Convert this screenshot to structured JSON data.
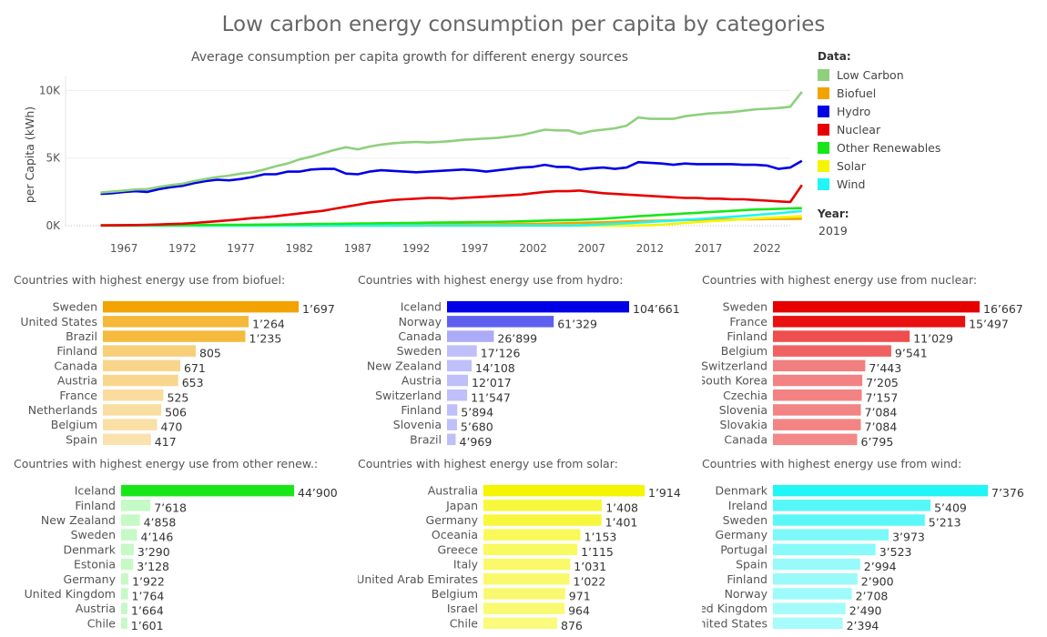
{
  "title": "Low carbon energy consumption per capita by categories",
  "subtitle": "Average consumption per capita growth for different energy sources",
  "legend": {
    "title": "Data:",
    "items": [
      {
        "label": "Low Carbon",
        "color": "#8ed07c"
      },
      {
        "label": "Biofuel",
        "color": "#f2a300"
      },
      {
        "label": "Hydro",
        "color": "#0000e6"
      },
      {
        "label": "Nuclear",
        "color": "#e60000"
      },
      {
        "label": "Other Renewables",
        "color": "#19e619"
      },
      {
        "label": "Solar",
        "color": "#f5f500"
      },
      {
        "label": "Wind",
        "color": "#21f5f5"
      }
    ]
  },
  "year_filter": {
    "label": "Year:",
    "value": "2019"
  },
  "chart_data": [
    {
      "type": "line",
      "title": "Average consumption per capita growth for different energy sources",
      "ylabel": "per Capita (kWh)",
      "ylim": [
        0,
        10500
      ],
      "xlim": [
        1962,
        2024
      ],
      "y_ticks": [
        {
          "v": 0,
          "label": "0K"
        },
        {
          "v": 5000,
          "label": "5K"
        },
        {
          "v": 10000,
          "label": "10K"
        }
      ],
      "x_ticks": [
        1967,
        1972,
        1977,
        1982,
        1987,
        1992,
        1997,
        2002,
        2007,
        2012,
        2017,
        2022
      ],
      "x_start": 1965,
      "grid": true,
      "series": [
        {
          "name": "Low Carbon",
          "color": "#8ed07c",
          "values": [
            2450,
            2520,
            2600,
            2680,
            2700,
            2870,
            3000,
            3100,
            3300,
            3450,
            3600,
            3700,
            3850,
            3950,
            4150,
            4400,
            4600,
            4900,
            5100,
            5350,
            5600,
            5800,
            5650,
            5850,
            6000,
            6100,
            6150,
            6200,
            6150,
            6200,
            6250,
            6350,
            6400,
            6450,
            6500,
            6600,
            6700,
            6900,
            7100,
            7050,
            7050,
            6800,
            7000,
            7100,
            7200,
            7400,
            8000,
            7900,
            7900,
            7900,
            8100,
            8200,
            8300,
            8350,
            8400,
            8500,
            8600,
            8650,
            8700,
            8800,
            9900
          ]
        },
        {
          "name": "Hydro",
          "color": "#0000e6",
          "values": [
            2350,
            2400,
            2500,
            2550,
            2500,
            2700,
            2850,
            2950,
            3150,
            3300,
            3400,
            3350,
            3450,
            3600,
            3800,
            3800,
            4000,
            4000,
            4150,
            4200,
            4200,
            3850,
            3800,
            4000,
            4100,
            4050,
            4000,
            3950,
            4000,
            4050,
            4100,
            4150,
            4100,
            4000,
            4100,
            4200,
            4300,
            4350,
            4500,
            4350,
            4350,
            4150,
            4250,
            4300,
            4200,
            4300,
            4700,
            4650,
            4600,
            4500,
            4600,
            4550,
            4550,
            4550,
            4550,
            4500,
            4500,
            4450,
            4200,
            4300,
            4800
          ]
        },
        {
          "name": "Nuclear",
          "color": "#e60000",
          "values": [
            20,
            30,
            40,
            50,
            70,
            90,
            120,
            150,
            200,
            260,
            330,
            400,
            480,
            560,
            620,
            700,
            800,
            900,
            1000,
            1100,
            1250,
            1400,
            1550,
            1700,
            1800,
            1900,
            1950,
            2000,
            2050,
            2050,
            2000,
            2050,
            2100,
            2150,
            2200,
            2250,
            2300,
            2400,
            2500,
            2550,
            2550,
            2600,
            2500,
            2400,
            2350,
            2300,
            2250,
            2200,
            2150,
            2100,
            2050,
            2050,
            2000,
            2000,
            1950,
            1950,
            1900,
            1850,
            1800,
            1750,
            3000
          ]
        },
        {
          "name": "Other Renewables",
          "color": "#19e619",
          "values": [
            30,
            30,
            35,
            35,
            40,
            40,
            45,
            45,
            50,
            55,
            60,
            65,
            70,
            75,
            80,
            90,
            100,
            110,
            120,
            130,
            140,
            150,
            160,
            170,
            180,
            190,
            200,
            210,
            220,
            230,
            240,
            250,
            260,
            270,
            280,
            300,
            320,
            350,
            380,
            400,
            420,
            440,
            480,
            520,
            580,
            640,
            700,
            750,
            800,
            850,
            900,
            950,
            1000,
            1050,
            1100,
            1150,
            1200,
            1220,
            1250,
            1280,
            1300
          ]
        },
        {
          "name": "Biofuel",
          "color": "#f2a300",
          "values": [
            20,
            20,
            20,
            20,
            20,
            20,
            20,
            20,
            20,
            20,
            20,
            20,
            20,
            20,
            20,
            20,
            20,
            20,
            25,
            30,
            35,
            40,
            45,
            50,
            55,
            60,
            65,
            70,
            75,
            80,
            85,
            90,
            95,
            100,
            110,
            120,
            130,
            140,
            150,
            170,
            190,
            210,
            230,
            250,
            280,
            310,
            340,
            360,
            380,
            400,
            420,
            430,
            440,
            450,
            460,
            470,
            480,
            490,
            500,
            500,
            510
          ]
        },
        {
          "name": "Solar",
          "color": "#f5f500",
          "values": [
            0,
            0,
            0,
            0,
            0,
            0,
            0,
            0,
            0,
            0,
            0,
            0,
            0,
            0,
            0,
            0,
            0,
            0,
            0,
            0,
            0,
            0,
            0,
            0,
            0,
            0,
            0,
            0,
            0,
            0,
            0,
            0,
            0,
            0,
            0,
            0,
            0,
            0,
            0,
            0,
            0,
            0,
            0,
            0,
            0,
            10,
            20,
            40,
            80,
            130,
            200,
            260,
            320,
            380,
            430,
            480,
            530,
            580,
            620,
            660,
            700
          ]
        },
        {
          "name": "Wind",
          "color": "#21f5f5",
          "values": [
            0,
            0,
            0,
            0,
            0,
            0,
            0,
            0,
            0,
            0,
            0,
            0,
            0,
            0,
            0,
            0,
            0,
            0,
            0,
            0,
            0,
            0,
            0,
            0,
            0,
            0,
            0,
            0,
            0,
            0,
            0,
            0,
            0,
            0,
            0,
            0,
            0,
            0,
            0,
            0,
            0,
            30,
            60,
            100,
            140,
            180,
            230,
            280,
            330,
            380,
            430,
            480,
            540,
            600,
            660,
            720,
            790,
            860,
            920,
            1000,
            1080
          ]
        }
      ]
    },
    {
      "type": "bar",
      "title": "Countries with highest energy use from biofuel:",
      "color": "#f2a300",
      "xlim": [
        0,
        1697
      ],
      "categories": [
        "Sweden",
        "United States",
        "Brazil",
        "Finland",
        "Canada",
        "Austria",
        "France",
        "Netherlands",
        "Belgium",
        "Spain"
      ],
      "values": [
        1697,
        1264,
        1235,
        805,
        671,
        653,
        525,
        506,
        470,
        417
      ],
      "labels": [
        "1’697",
        "1’264",
        "1’235",
        "805",
        "671",
        "653",
        "525",
        "506",
        "470",
        "417"
      ]
    },
    {
      "type": "bar",
      "title": "Countries with highest energy use from hydro:",
      "color": "#0000e6",
      "xlim": [
        0,
        104661
      ],
      "categories": [
        "Iceland",
        "Norway",
        "Canada",
        "Sweden",
        "New Zealand",
        "Austria",
        "Switzerland",
        "Finland",
        "Slovenia",
        "Brazil"
      ],
      "values": [
        104661,
        61329,
        26899,
        17126,
        14108,
        12017,
        11547,
        5894,
        5680,
        4969
      ],
      "labels": [
        "104’661",
        "61’329",
        "26’899",
        "17’126",
        "14’108",
        "12’017",
        "11’547",
        "5’894",
        "5’680",
        "4’969"
      ]
    },
    {
      "type": "bar",
      "title": "Countries with highest energy use from nuclear:",
      "color": "#e60000",
      "xlim": [
        0,
        16667
      ],
      "categories": [
        "Sweden",
        "France",
        "Finland",
        "Belgium",
        "Switzerland",
        "South Korea",
        "Czechia",
        "Slovenia",
        "Slovakia",
        "Canada"
      ],
      "values": [
        16667,
        15497,
        11029,
        9541,
        7443,
        7205,
        7157,
        7084,
        7084,
        6795
      ],
      "labels": [
        "16’667",
        "15’497",
        "11’029",
        "9’541",
        "7’443",
        "7’205",
        "7’157",
        "7’084",
        "7’084",
        "6’795"
      ]
    },
    {
      "type": "bar",
      "title": "Countries with highest energy use from other renew.:",
      "color": "#19e619",
      "xlim": [
        0,
        44900
      ],
      "categories": [
        "Iceland",
        "Finland",
        "New Zealand",
        "Sweden",
        "Denmark",
        "Estonia",
        "Germany",
        "United Kingdom",
        "Austria",
        "Chile"
      ],
      "values": [
        44900,
        7618,
        4858,
        4146,
        3290,
        3128,
        1922,
        1764,
        1664,
        1601
      ],
      "labels": [
        "44’900",
        "7’618",
        "4’858",
        "4’146",
        "3’290",
        "3’128",
        "1’922",
        "1’764",
        "1’664",
        "1’601"
      ]
    },
    {
      "type": "bar",
      "title": "Countries with highest energy use from solar:",
      "color": "#f5f500",
      "xlim": [
        0,
        1914
      ],
      "categories": [
        "Australia",
        "Japan",
        "Germany",
        "Oceania",
        "Greece",
        "Italy",
        "United Arab Emirates",
        "Belgium",
        "Israel",
        "Chile"
      ],
      "values": [
        1914,
        1408,
        1401,
        1153,
        1115,
        1031,
        1022,
        971,
        964,
        876
      ],
      "labels": [
        "1’914",
        "1’408",
        "1’401",
        "1’153",
        "1’115",
        "1’031",
        "1’022",
        "971",
        "964",
        "876"
      ]
    },
    {
      "type": "bar",
      "title": "Countries with highest energy use from wind:",
      "color": "#21f5f5",
      "xlim": [
        0,
        7376
      ],
      "categories": [
        "Denmark",
        "Ireland",
        "Sweden",
        "Germany",
        "Portugal",
        "Spain",
        "Finland",
        "Norway",
        "United Kingdom",
        "United States"
      ],
      "values": [
        7376,
        5409,
        5213,
        3973,
        3523,
        2994,
        2900,
        2708,
        2490,
        2394
      ],
      "labels": [
        "7’376",
        "5’409",
        "5’213",
        "3’973",
        "3’523",
        "2’994",
        "2’900",
        "2’708",
        "2’490",
        "2’394"
      ]
    }
  ]
}
